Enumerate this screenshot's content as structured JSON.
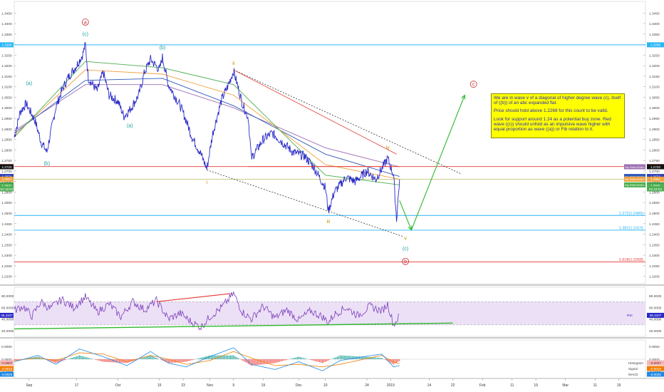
{
  "chart_data": {
    "type": "line",
    "title": "",
    "xlabel": "",
    "ylabel": "",
    "price_axis": {
      "range": [
        1.2165,
        1.3505
      ],
      "ticks": [
        "1.3450",
        "1.3400",
        "1.3350",
        "1.3300",
        "1.3250",
        "1.3200",
        "1.3150",
        "1.3100",
        "1.3050",
        "1.3000",
        "1.2950",
        "1.2900",
        "1.2850",
        "1.2800",
        "1.2750",
        "1.2700",
        "1.2650",
        "1.2600",
        "1.2550",
        "1.2500",
        "1.2450",
        "1.2400",
        "1.2350",
        "1.2300",
        "1.2250",
        "1.2200"
      ]
    },
    "time_axis": {
      "range": [
        "2018-08-27",
        "2019-03-28"
      ],
      "ticks": [
        {
          "date": "2018-09-01",
          "label": "Sep"
        },
        {
          "date": "2018-09-17",
          "label": "17"
        },
        {
          "date": "2018-10-01",
          "label": "Oct"
        },
        {
          "date": "2018-10-15",
          "label": "15"
        },
        {
          "date": "2018-10-23",
          "label": "23"
        },
        {
          "date": "2018-11-01",
          "label": "Nov"
        },
        {
          "date": "2018-11-09",
          "label": "9"
        },
        {
          "date": "2018-11-19",
          "label": "19"
        },
        {
          "date": "2018-12-01",
          "label": "Dec"
        },
        {
          "date": "2018-12-10",
          "label": "10"
        },
        {
          "date": "2018-12-24",
          "label": "24"
        },
        {
          "date": "2019-01-01",
          "label": "2019"
        },
        {
          "date": "2019-01-14",
          "label": "14"
        },
        {
          "date": "2019-01-22",
          "label": "22"
        },
        {
          "date": "2019-02-01",
          "label": "Feb"
        },
        {
          "date": "2019-02-11",
          "label": "11"
        },
        {
          "date": "2019-02-19",
          "label": "19"
        },
        {
          "date": "2019-03-01",
          "label": "Mar"
        },
        {
          "date": "2019-03-11",
          "label": "11"
        },
        {
          "date": "2019-03-19",
          "label": "19"
        }
      ]
    },
    "price_path": [
      [
        "2018-08-27",
        1.286
      ],
      [
        "2018-08-29",
        1.298
      ],
      [
        "2018-08-31",
        1.302
      ],
      [
        "2018-09-03",
        1.294
      ],
      [
        "2018-09-05",
        1.284
      ],
      [
        "2018-09-07",
        1.279
      ],
      [
        "2018-09-10",
        1.3
      ],
      [
        "2018-09-12",
        1.308
      ],
      [
        "2018-09-14",
        1.314
      ],
      [
        "2018-09-17",
        1.32
      ],
      [
        "2018-09-19",
        1.325
      ],
      [
        "2018-09-20",
        1.3299
      ],
      [
        "2018-09-21",
        1.314
      ],
      [
        "2018-09-24",
        1.308
      ],
      [
        "2018-09-26",
        1.317
      ],
      [
        "2018-09-28",
        1.306
      ],
      [
        "2018-10-01",
        1.303
      ],
      [
        "2018-10-03",
        1.296
      ],
      [
        "2018-10-05",
        1.299
      ],
      [
        "2018-10-08",
        1.306
      ],
      [
        "2018-10-10",
        1.317
      ],
      [
        "2018-10-12",
        1.323
      ],
      [
        "2018-10-15",
        1.318
      ],
      [
        "2018-10-16",
        1.324
      ],
      [
        "2018-10-18",
        1.311
      ],
      [
        "2018-10-22",
        1.301
      ],
      [
        "2018-10-24",
        1.294
      ],
      [
        "2018-10-26",
        1.286
      ],
      [
        "2018-10-29",
        1.278
      ],
      [
        "2018-10-31",
        1.271
      ],
      [
        "2018-11-02",
        1.288
      ],
      [
        "2018-11-05",
        1.304
      ],
      [
        "2018-11-07",
        1.31
      ],
      [
        "2018-11-09",
        1.3175
      ],
      [
        "2018-11-12",
        1.302
      ],
      [
        "2018-11-14",
        1.295
      ],
      [
        "2018-11-15",
        1.276
      ],
      [
        "2018-11-19",
        1.285
      ],
      [
        "2018-11-22",
        1.288
      ],
      [
        "2018-11-26",
        1.283
      ],
      [
        "2018-11-29",
        1.279
      ],
      [
        "2018-12-03",
        1.277
      ],
      [
        "2018-12-06",
        1.272
      ],
      [
        "2018-12-10",
        1.262
      ],
      [
        "2018-12-11",
        1.251
      ],
      [
        "2018-12-13",
        1.26
      ],
      [
        "2018-12-17",
        1.267
      ],
      [
        "2018-12-20",
        1.265
      ],
      [
        "2018-12-24",
        1.27
      ],
      [
        "2018-12-27",
        1.266
      ],
      [
        "2018-12-31",
        1.276
      ],
      [
        "2019-01-02",
        1.268
      ],
      [
        "2019-01-03",
        1.247
      ],
      [
        "2019-01-04",
        1.266
      ]
    ],
    "ema_lines": [
      {
        "label": "My EMA:EMA4",
        "color": "#9c6fb3",
        "path": [
          [
            "2018-08-27",
            1.289
          ],
          [
            "2018-09-20",
            1.311
          ],
          [
            "2018-10-16",
            1.311
          ],
          [
            "2018-11-09",
            1.3
          ],
          [
            "2018-12-10",
            1.281
          ],
          [
            "2019-01-04",
            1.272
          ]
        ]
      },
      {
        "label": "My EMA:EMA3",
        "color": "#2f58b8",
        "path": [
          [
            "2018-08-27",
            1.288
          ],
          [
            "2018-09-20",
            1.313
          ],
          [
            "2018-10-16",
            1.314
          ],
          [
            "2018-11-09",
            1.301
          ],
          [
            "2018-12-10",
            1.278
          ],
          [
            "2019-01-04",
            1.2674
          ]
        ]
      },
      {
        "label": "My EMA:EMA2",
        "color": "#f0a040",
        "path": [
          [
            "2018-08-27",
            1.287
          ],
          [
            "2018-09-20",
            1.318
          ],
          [
            "2018-10-16",
            1.316
          ],
          [
            "2018-11-09",
            1.306
          ],
          [
            "2018-12-10",
            1.273
          ],
          [
            "2019-01-04",
            1.2661
          ]
        ]
      },
      {
        "label": "My EMA:EMA1",
        "color": "#4caf50",
        "path": [
          [
            "2018-08-27",
            1.286
          ],
          [
            "2018-09-20",
            1.322
          ],
          [
            "2018-10-16",
            1.319
          ],
          [
            "2018-11-09",
            1.311
          ],
          [
            "2018-12-10",
            1.268
          ],
          [
            "2019-01-04",
            1.2634
          ]
        ]
      }
    ],
    "axis_badges": [
      {
        "value": 1.3299,
        "text": "1.3299",
        "color": "#29b6f6"
      },
      {
        "value": 1.2721,
        "text": "1.2721",
        "color": "#e53935"
      },
      {
        "value": 1.272,
        "text": "1.2720",
        "color": "#111111"
      },
      {
        "value": 1.2674,
        "text": "1.2674",
        "color": "#2f3fb8"
      },
      {
        "value": 1.2661,
        "text": "1.2661",
        "color": "#f0a040"
      },
      {
        "value": 1.2634,
        "text": "1.2634",
        "color": "#2e7d32"
      },
      {
        "value": 1.2631,
        "text": "1.2631",
        "color": "#4caf50"
      },
      {
        "value": 1.2615,
        "text": "01:16:04",
        "color": "#4caf50"
      }
    ],
    "horizontal_levels": [
      {
        "value": 1.3299,
        "color": "#29b6f6",
        "label": ""
      },
      {
        "value": 1.2721,
        "color": "#e53935",
        "label": ""
      },
      {
        "value": 1.2661,
        "color": "#c5c577",
        "label": ""
      },
      {
        "value": 1.2489,
        "color": "#29b6f6",
        "label": "1.272(1.2489)"
      },
      {
        "value": 1.2419,
        "color": "#29b6f6",
        "label": "1.382(1.2419)"
      },
      {
        "value": 1.2268,
        "color": "#e53935",
        "label": "1.618(1.2268)"
      }
    ],
    "wave_labels": [
      {
        "text": "(c)",
        "date": "2018-09-20",
        "price": 1.3345,
        "color": "#1a9e9e"
      },
      {
        "text": "a",
        "date": "2018-09-20",
        "price": 1.34,
        "color": "#c62828",
        "circled": true
      },
      {
        "text": "(b)",
        "date": "2018-10-16",
        "price": 1.328,
        "color": "#1a9e9e"
      },
      {
        "text": "(a)",
        "date": "2018-09-01",
        "price": 1.311,
        "color": "#1a9e9e"
      },
      {
        "text": "(b)",
        "date": "2018-09-07",
        "price": 1.273,
        "color": "#1a9e9e"
      },
      {
        "text": "(a)",
        "date": "2018-10-05",
        "price": 1.291,
        "color": "#1a9e9e"
      },
      {
        "text": "ii",
        "date": "2018-11-09",
        "price": 1.3205,
        "color": "#c88b00"
      },
      {
        "text": "i",
        "date": "2018-10-31",
        "price": 1.264,
        "color": "#c88b00"
      },
      {
        "text": "iii",
        "date": "2018-12-11",
        "price": 1.2455,
        "color": "#c88b00"
      },
      {
        "text": "iv",
        "date": "2018-12-31",
        "price": 1.2805,
        "color": "#c88b00"
      },
      {
        "text": "v",
        "date": "2019-01-06",
        "price": 1.2375,
        "color": "#c88b00"
      },
      {
        "text": "(c)",
        "date": "2019-01-06",
        "price": 1.2325,
        "color": "#1a9e9e"
      },
      {
        "text": "b",
        "date": "2019-01-06",
        "price": 1.2264,
        "color": "#c62828",
        "circled": true
      },
      {
        "text": "c",
        "date": "2019-01-29",
        "price": 1.3105,
        "color": "#c62828",
        "circled": true
      }
    ],
    "trend_lines": [
      {
        "from": [
          "2018-11-09",
          1.318
        ],
        "to": [
          "2019-01-25",
          1.2685
        ],
        "color": "#333333",
        "dashed": true
      },
      {
        "from": [
          "2018-10-31",
          1.2705
        ],
        "to": [
          "2019-01-05",
          1.239
        ],
        "color": "#333333",
        "dashed": true
      },
      {
        "from": [
          "2018-11-14",
          1.2721
        ],
        "to": [
          "2019-01-04",
          1.2721
        ],
        "color": "#e53935",
        "dashed": false
      },
      {
        "from": [
          "2018-11-09",
          1.318
        ],
        "to": [
          "2019-01-03",
          1.278
        ],
        "color": "#e53935",
        "dashed": false
      }
    ],
    "projection": [
      [
        "2019-01-04",
        1.256
      ],
      [
        "2019-01-08",
        1.242
      ],
      [
        "2019-01-26",
        1.306
      ]
    ],
    "rsi": {
      "ticks": [
        "80.0000",
        "60.0000",
        "40.0000",
        "20.0000"
      ],
      "range": [
        10,
        95
      ],
      "band": [
        30,
        70
      ],
      "value_badge": "46.4107",
      "label": "RSI",
      "divergence_red": [
        [
          "2018-10-14",
          70
        ],
        [
          "2018-11-08",
          84
        ]
      ],
      "support_green": [
        [
          "2018-08-27",
          23
        ],
        [
          "2019-01-22",
          33
        ]
      ],
      "path": [
        [
          0,
          55
        ],
        [
          3,
          62
        ],
        [
          6,
          45
        ],
        [
          9,
          70
        ],
        [
          12,
          58
        ],
        [
          16,
          74
        ],
        [
          20,
          60
        ],
        [
          24,
          78
        ],
        [
          28,
          52
        ],
        [
          32,
          66
        ],
        [
          36,
          44
        ],
        [
          40,
          70
        ],
        [
          44,
          56
        ],
        [
          48,
          72
        ],
        [
          52,
          40
        ],
        [
          56,
          50
        ],
        [
          60,
          34
        ],
        [
          63,
          26
        ],
        [
          66,
          44
        ],
        [
          70,
          60
        ],
        [
          73,
          78
        ],
        [
          74,
          84
        ],
        [
          77,
          52
        ],
        [
          80,
          40
        ],
        [
          84,
          62
        ],
        [
          88,
          42
        ],
        [
          92,
          56
        ],
        [
          96,
          38
        ],
        [
          100,
          54
        ],
        [
          104,
          44
        ],
        [
          106,
          34
        ],
        [
          108,
          48
        ],
        [
          112,
          60
        ],
        [
          116,
          46
        ],
        [
          120,
          62
        ],
        [
          124,
          54
        ],
        [
          126,
          66
        ],
        [
          128,
          30
        ],
        [
          130,
          46
        ]
      ]
    },
    "macd": {
      "ticks": [
        "0.0050",
        "0.0000",
        "-0.0050"
      ],
      "range": [
        -0.0075,
        0.0075
      ],
      "histogram_badge": "-0.0007",
      "signal_badge": "-0.0018",
      "macd_badge": "-0.0025",
      "histogram_label": "Histogram",
      "signal_label": "Signal",
      "macd_label": "MACD",
      "macd_path": [
        [
          0,
          -0.001
        ],
        [
          8,
          0.0015
        ],
        [
          14,
          -0.002
        ],
        [
          22,
          0.004
        ],
        [
          30,
          0.001
        ],
        [
          38,
          -0.0025
        ],
        [
          46,
          0.003
        ],
        [
          52,
          -0.0015
        ],
        [
          58,
          -0.003
        ],
        [
          66,
          0.001
        ],
        [
          74,
          0.0045
        ],
        [
          80,
          -0.002
        ],
        [
          88,
          -0.004
        ],
        [
          96,
          -0.001
        ],
        [
          104,
          -0.0045
        ],
        [
          110,
          -0.0005
        ],
        [
          118,
          0.001
        ],
        [
          124,
          0.002
        ],
        [
          128,
          -0.003
        ],
        [
          130,
          -0.0025
        ]
      ],
      "signal_path": [
        [
          0,
          -0.0005
        ],
        [
          8,
          0.0005
        ],
        [
          14,
          -0.0005
        ],
        [
          22,
          0.0025
        ],
        [
          30,
          0.002
        ],
        [
          38,
          -0.001
        ],
        [
          46,
          0.0015
        ],
        [
          52,
          0.0
        ],
        [
          58,
          -0.002
        ],
        [
          66,
          -0.0005
        ],
        [
          74,
          0.003
        ],
        [
          80,
          0.0005
        ],
        [
          88,
          -0.0025
        ],
        [
          96,
          -0.002
        ],
        [
          104,
          -0.003
        ],
        [
          110,
          -0.002
        ],
        [
          118,
          0.0
        ],
        [
          124,
          0.0015
        ],
        [
          128,
          -0.001
        ],
        [
          130,
          -0.0018
        ]
      ]
    }
  },
  "note": {
    "p1": "We are in wave v of a diagonal of higher degree wave (c), itself of ((b)) of an abc expanded flat.",
    "p2": "Price should hold above 1.2268 for this count to be valid.",
    "p3": "Look for support around 1.24 as a potential buy zone. Red wave ((c)) should unfold as an impulsive wave higher with equal proportion as wave ((a)) or Fib relation to it."
  }
}
